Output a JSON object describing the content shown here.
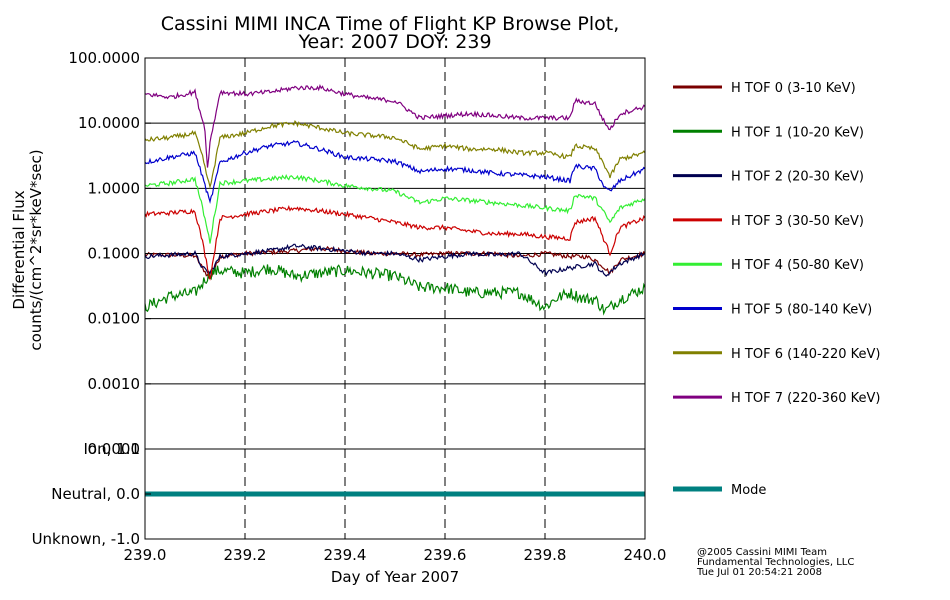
{
  "chart_data": [
    {
      "type": "line",
      "title": "Cassini MIMI INCA Time of Flight KP Browse Plot,",
      "subtitle": "Year: 2007 DOY: 239",
      "xlabel": "Day of Year 2007",
      "ylabel_line1": "Differential Flux",
      "ylabel_line2": "counts/(cm^2*sr*keV*sec)",
      "y_scale": "log",
      "xlim": [
        239.0,
        240.0
      ],
      "ylim": [
        0.0001,
        100.0
      ],
      "y_ticks": [
        {
          "value": 100.0,
          "label": "100.0000"
        },
        {
          "value": 10.0,
          "label": "10.0000"
        },
        {
          "value": 1.0,
          "label": "1.0000"
        },
        {
          "value": 0.1,
          "label": "0.1000"
        },
        {
          "value": 0.01,
          "label": "0.0100"
        },
        {
          "value": 0.001,
          "label": "0.0010"
        },
        {
          "value": 0.0001,
          "label": "0.0001"
        }
      ],
      "x_ticks": [
        {
          "value": 239.0,
          "label": "239.0"
        },
        {
          "value": 239.2,
          "label": "239.2"
        },
        {
          "value": 239.4,
          "label": "239.4"
        },
        {
          "value": 239.6,
          "label": "239.6"
        },
        {
          "value": 239.8,
          "label": "239.8"
        },
        {
          "value": 240.0,
          "label": "240.0"
        }
      ],
      "grid": "horizontal solid at decades, vertical dashed at x ticks",
      "legend_placement": "right",
      "series": [
        {
          "name": "H TOF 0 (3-10 KeV)",
          "color": "#7a0000",
          "x": [
            239.0,
            239.05,
            239.1,
            239.115,
            239.13,
            239.15,
            239.2,
            239.3,
            239.35,
            239.4,
            239.45,
            239.5,
            239.55,
            239.6,
            239.65,
            239.7,
            239.75,
            239.8,
            239.85,
            239.88,
            239.9,
            239.92,
            239.93,
            239.95,
            240.0
          ],
          "y": [
            0.095,
            0.095,
            0.092,
            0.06,
            0.04,
            0.09,
            0.1,
            0.11,
            0.12,
            0.11,
            0.1,
            0.1,
            0.095,
            0.1,
            0.1,
            0.1,
            0.09,
            0.1,
            0.09,
            0.09,
            0.08,
            0.06,
            0.05,
            0.08,
            0.1
          ]
        },
        {
          "name": "H TOF 1 (10-20 KeV)",
          "color": "#008000",
          "x": [
            239.0,
            239.05,
            239.1,
            239.115,
            239.13,
            239.15,
            239.2,
            239.25,
            239.3,
            239.35,
            239.4,
            239.45,
            239.5,
            239.55,
            239.6,
            239.65,
            239.7,
            239.75,
            239.8,
            239.82,
            239.85,
            239.88,
            239.9,
            239.92,
            239.95,
            240.0
          ],
          "y": [
            0.015,
            0.022,
            0.025,
            0.035,
            0.05,
            0.055,
            0.05,
            0.06,
            0.045,
            0.05,
            0.055,
            0.05,
            0.045,
            0.03,
            0.03,
            0.025,
            0.025,
            0.025,
            0.015,
            0.02,
            0.025,
            0.02,
            0.02,
            0.013,
            0.02,
            0.03
          ]
        },
        {
          "name": "H TOF 2 (20-30 KeV)",
          "color": "#000050",
          "x": [
            239.0,
            239.05,
            239.1,
            239.115,
            239.13,
            239.15,
            239.2,
            239.25,
            239.3,
            239.35,
            239.4,
            239.45,
            239.5,
            239.55,
            239.6,
            239.65,
            239.7,
            239.75,
            239.8,
            239.85,
            239.9,
            239.92,
            239.95,
            240.0
          ],
          "y": [
            0.09,
            0.095,
            0.1,
            0.06,
            0.05,
            0.09,
            0.1,
            0.11,
            0.13,
            0.12,
            0.11,
            0.1,
            0.1,
            0.08,
            0.09,
            0.1,
            0.095,
            0.1,
            0.05,
            0.06,
            0.07,
            0.045,
            0.07,
            0.1
          ]
        },
        {
          "name": "H TOF 3 (30-50 KeV)",
          "color": "#cc0000",
          "x": [
            239.0,
            239.05,
            239.1,
            239.115,
            239.13,
            239.15,
            239.2,
            239.25,
            239.3,
            239.35,
            239.4,
            239.45,
            239.5,
            239.55,
            239.6,
            239.65,
            239.7,
            239.75,
            239.8,
            239.85,
            239.86,
            239.9,
            239.92,
            239.93,
            239.95,
            240.0
          ],
          "y": [
            0.4,
            0.42,
            0.45,
            0.15,
            0.04,
            0.35,
            0.4,
            0.45,
            0.5,
            0.45,
            0.4,
            0.35,
            0.3,
            0.25,
            0.25,
            0.22,
            0.2,
            0.2,
            0.18,
            0.17,
            0.3,
            0.35,
            0.15,
            0.1,
            0.25,
            0.35
          ]
        },
        {
          "name": "H TOF 4 (50-80 KeV)",
          "color": "#33ee33",
          "x": [
            239.0,
            239.05,
            239.1,
            239.115,
            239.13,
            239.15,
            239.2,
            239.25,
            239.3,
            239.35,
            239.4,
            239.45,
            239.5,
            239.55,
            239.6,
            239.65,
            239.7,
            239.75,
            239.8,
            239.85,
            239.86,
            239.9,
            239.92,
            239.93,
            239.95,
            240.0
          ],
          "y": [
            1.1,
            1.2,
            1.4,
            0.5,
            0.15,
            1.2,
            1.3,
            1.4,
            1.5,
            1.3,
            1.1,
            1.0,
            0.9,
            0.6,
            0.7,
            0.65,
            0.6,
            0.55,
            0.5,
            0.45,
            0.8,
            0.7,
            0.4,
            0.3,
            0.5,
            0.7
          ]
        },
        {
          "name": "H TOF 5 (80-140 KeV)",
          "color": "#0000cc",
          "x": [
            239.0,
            239.05,
            239.1,
            239.115,
            239.13,
            239.15,
            239.2,
            239.25,
            239.3,
            239.35,
            239.4,
            239.45,
            239.5,
            239.55,
            239.6,
            239.65,
            239.7,
            239.75,
            239.8,
            239.85,
            239.86,
            239.9,
            239.92,
            239.93,
            239.95,
            240.0
          ],
          "y": [
            2.5,
            3.0,
            3.5,
            1.5,
            0.6,
            2.5,
            3.5,
            4.5,
            5.0,
            4.0,
            3.0,
            2.8,
            2.6,
            1.8,
            2.0,
            1.9,
            1.7,
            1.6,
            1.5,
            1.3,
            2.2,
            2.0,
            1.0,
            0.9,
            1.3,
            2.0
          ]
        },
        {
          "name": "H TOF 6 (140-220 KeV)",
          "color": "#808000",
          "x": [
            239.0,
            239.05,
            239.1,
            239.115,
            239.13,
            239.15,
            239.2,
            239.25,
            239.3,
            239.35,
            239.4,
            239.45,
            239.5,
            239.55,
            239.6,
            239.65,
            239.7,
            239.75,
            239.8,
            239.85,
            239.86,
            239.9,
            239.92,
            239.93,
            239.95,
            240.0
          ],
          "y": [
            5.5,
            6.0,
            7.0,
            3.0,
            1.0,
            6.0,
            7.0,
            9.0,
            10.0,
            8.5,
            7.0,
            6.5,
            6.0,
            4.0,
            4.5,
            4.0,
            4.0,
            3.5,
            3.5,
            3.0,
            4.5,
            4.0,
            2.2,
            1.5,
            2.8,
            3.5
          ]
        },
        {
          "name": "H TOF 7 (220-360 KeV)",
          "color": "#800080",
          "x": [
            239.0,
            239.05,
            239.1,
            239.12,
            239.125,
            239.13,
            239.15,
            239.2,
            239.25,
            239.3,
            239.35,
            239.4,
            239.45,
            239.5,
            239.55,
            239.6,
            239.65,
            239.7,
            239.75,
            239.8,
            239.85,
            239.86,
            239.9,
            239.92,
            239.93,
            239.95,
            240.0
          ],
          "y": [
            28.0,
            25.0,
            30.0,
            8.0,
            2.0,
            5.0,
            30.0,
            28.0,
            30.0,
            35.0,
            35.0,
            28.0,
            24.0,
            22.0,
            12.0,
            13.0,
            14.0,
            13.0,
            12.0,
            12.0,
            12.0,
            22.0,
            20.0,
            10.0,
            8.0,
            14.0,
            18.0
          ]
        }
      ]
    },
    {
      "type": "line",
      "xlim": [
        239.0,
        240.0
      ],
      "ylim": [
        -1.0,
        1.0
      ],
      "y_ticks": [
        {
          "value": 1.0,
          "label": "Ion, 1.0"
        },
        {
          "value": 0.0,
          "label": "Neutral, 0.0"
        },
        {
          "value": -1.0,
          "label": "Unknown, -1.0"
        }
      ],
      "series": [
        {
          "name": "Mode",
          "color": "#008080",
          "x": [
            239.0,
            240.0
          ],
          "y": [
            0.0,
            0.0
          ]
        }
      ]
    }
  ],
  "credits": {
    "line1": "@2005 Cassini MIMI Team",
    "line2": "Fundamental Technologies, LLC",
    "line3": "Tue Jul 01 20:54:21 2008"
  }
}
